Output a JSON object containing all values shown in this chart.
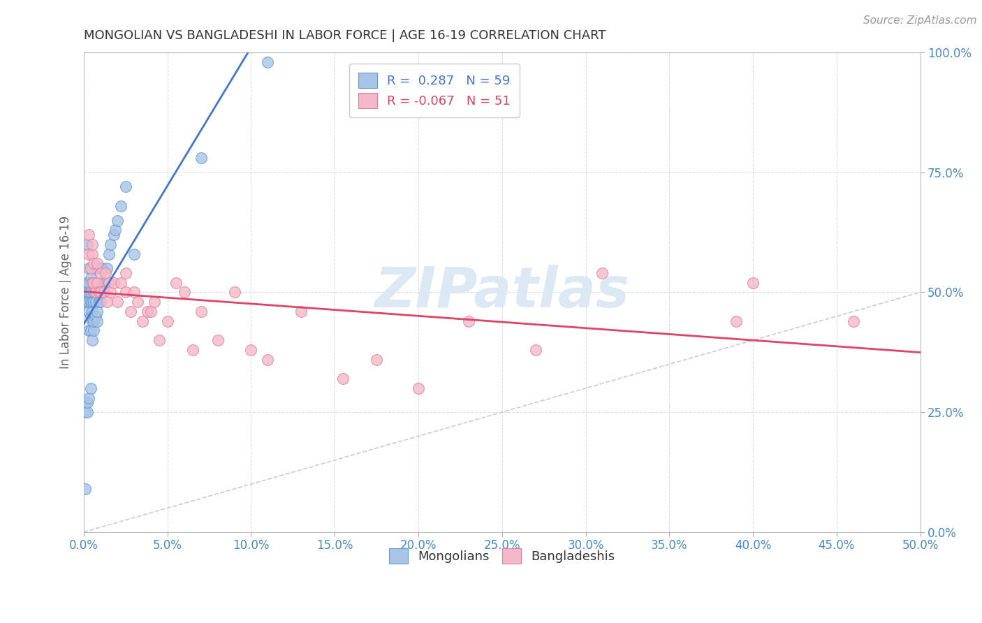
{
  "title": "MONGOLIAN VS BANGLADESHI IN LABOR FORCE | AGE 16-19 CORRELATION CHART",
  "source": "Source: ZipAtlas.com",
  "ylabel_label": "In Labor Force | Age 16-19",
  "xlim": [
    0.0,
    0.5
  ],
  "ylim": [
    0.0,
    1.0
  ],
  "xtick_vals": [
    0.0,
    0.05,
    0.1,
    0.15,
    0.2,
    0.25,
    0.3,
    0.35,
    0.4,
    0.45,
    0.5
  ],
  "ytick_vals": [
    0.0,
    0.25,
    0.5,
    0.75,
    1.0
  ],
  "mongolian_R": 0.287,
  "mongolian_N": 59,
  "bangladeshi_R": -0.067,
  "bangladeshi_N": 51,
  "mongolian_color": "#a8c4e8",
  "mongolian_edge_color": "#6699cc",
  "bangladeshi_color": "#f5b8c8",
  "bangladeshi_edge_color": "#e080a0",
  "trend_mongolian_color": "#4477cc",
  "trend_bangladeshi_color": "#dd4466",
  "diagonal_color": "#cccccc",
  "watermark_color": "#dde8f5",
  "background_color": "#ffffff",
  "grid_color": "#dddddd",
  "title_color": "#333333",
  "axis_label_color": "#666666",
  "tick_label_color": "#4488cc",
  "legend_mongolian_label": "Mongolians",
  "legend_bangladeshi_label": "Bangladeshis",
  "mongolian_x": [
    0.001,
    0.001,
    0.001,
    0.001,
    0.001,
    0.002,
    0.002,
    0.002,
    0.002,
    0.002,
    0.002,
    0.003,
    0.003,
    0.003,
    0.003,
    0.003,
    0.003,
    0.003,
    0.004,
    0.004,
    0.004,
    0.004,
    0.004,
    0.004,
    0.005,
    0.005,
    0.005,
    0.005,
    0.005,
    0.006,
    0.006,
    0.006,
    0.006,
    0.007,
    0.007,
    0.007,
    0.007,
    0.008,
    0.008,
    0.008,
    0.009,
    0.009,
    0.01,
    0.01,
    0.011,
    0.011,
    0.012,
    0.013,
    0.014,
    0.015,
    0.016,
    0.018,
    0.019,
    0.02,
    0.022,
    0.025,
    0.03,
    0.07,
    0.11
  ],
  "mongolian_y": [
    0.09,
    0.25,
    0.27,
    0.48,
    0.5,
    0.25,
    0.27,
    0.48,
    0.5,
    0.52,
    0.6,
    0.28,
    0.42,
    0.46,
    0.48,
    0.5,
    0.52,
    0.55,
    0.3,
    0.42,
    0.45,
    0.48,
    0.5,
    0.53,
    0.4,
    0.44,
    0.46,
    0.48,
    0.52,
    0.42,
    0.44,
    0.48,
    0.5,
    0.45,
    0.48,
    0.5,
    0.55,
    0.44,
    0.46,
    0.5,
    0.48,
    0.52,
    0.48,
    0.55,
    0.5,
    0.55,
    0.5,
    0.52,
    0.55,
    0.58,
    0.6,
    0.62,
    0.63,
    0.65,
    0.68,
    0.72,
    0.58,
    0.78,
    0.98
  ],
  "bangladeshi_x": [
    0.003,
    0.003,
    0.004,
    0.005,
    0.005,
    0.005,
    0.006,
    0.006,
    0.007,
    0.008,
    0.008,
    0.009,
    0.01,
    0.01,
    0.012,
    0.013,
    0.014,
    0.015,
    0.016,
    0.018,
    0.02,
    0.022,
    0.025,
    0.025,
    0.028,
    0.03,
    0.032,
    0.035,
    0.038,
    0.04,
    0.042,
    0.045,
    0.05,
    0.055,
    0.06,
    0.065,
    0.07,
    0.08,
    0.09,
    0.1,
    0.11,
    0.13,
    0.155,
    0.175,
    0.2,
    0.23,
    0.27,
    0.31,
    0.39,
    0.4,
    0.46
  ],
  "bangladeshi_y": [
    0.62,
    0.58,
    0.55,
    0.52,
    0.58,
    0.6,
    0.56,
    0.52,
    0.5,
    0.56,
    0.52,
    0.5,
    0.54,
    0.5,
    0.5,
    0.54,
    0.48,
    0.52,
    0.5,
    0.52,
    0.48,
    0.52,
    0.54,
    0.5,
    0.46,
    0.5,
    0.48,
    0.44,
    0.46,
    0.46,
    0.48,
    0.4,
    0.44,
    0.52,
    0.5,
    0.38,
    0.46,
    0.4,
    0.5,
    0.38,
    0.36,
    0.46,
    0.32,
    0.36,
    0.3,
    0.44,
    0.38,
    0.54,
    0.44,
    0.52,
    0.44
  ]
}
